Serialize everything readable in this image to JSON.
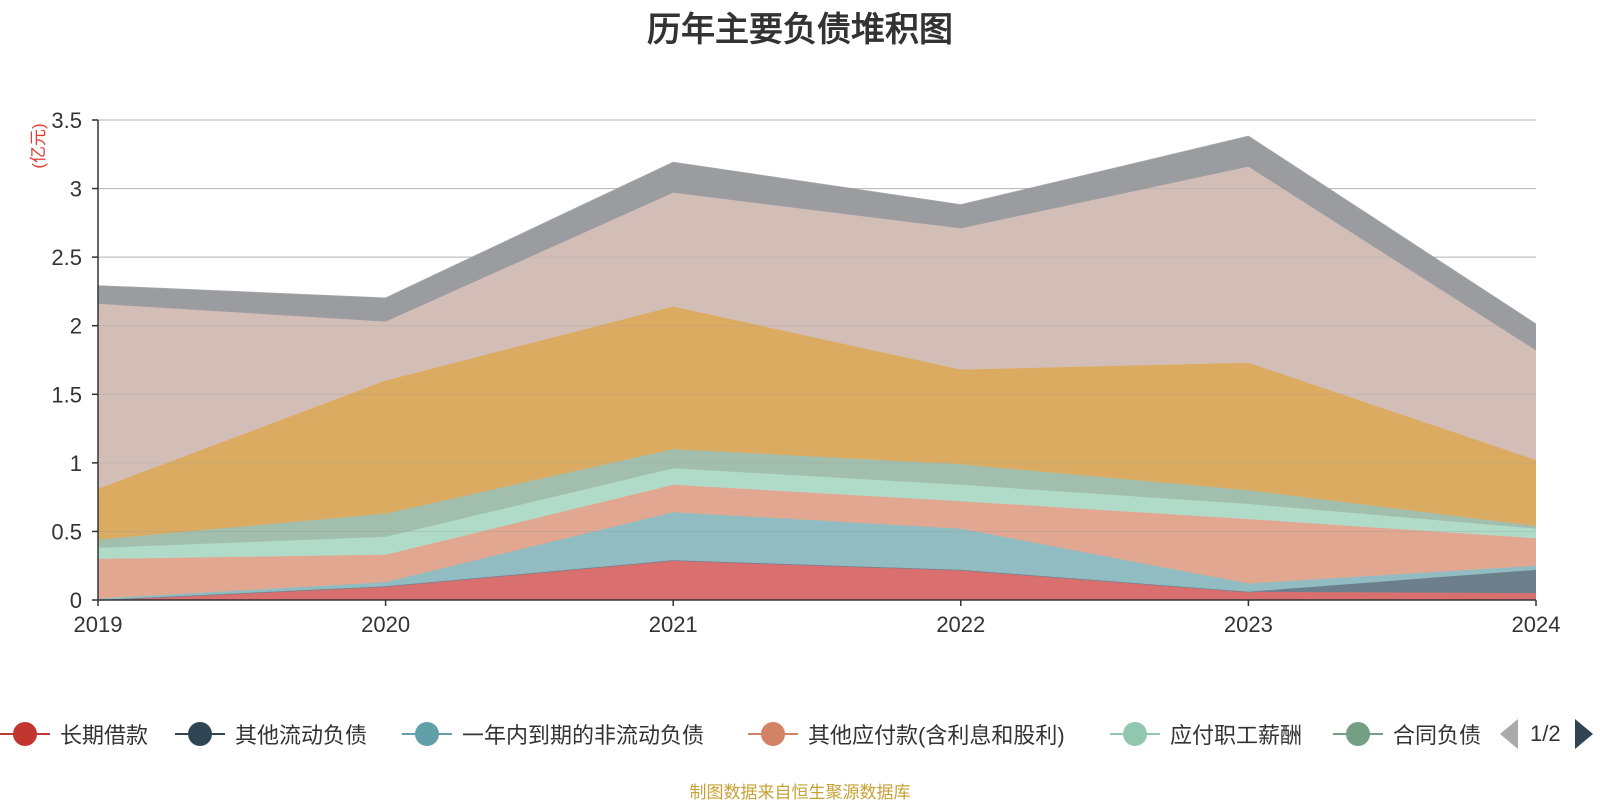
{
  "title": "历年主要负债堆积图",
  "unit_label": "(亿元)",
  "source": "制图数据来自恒生聚源数据库",
  "legend": {
    "items": [
      {
        "label": "长期借款",
        "color": "#c23531"
      },
      {
        "label": "其他流动负债",
        "color": "#2f4554"
      },
      {
        "label": "一年内到期的非流动负债",
        "color": "#61a0a8"
      },
      {
        "label": "其他应付款(含利息和股利)",
        "color": "#d48265"
      },
      {
        "label": "应付职工薪酬",
        "color": "#91c7ae"
      },
      {
        "label": "合同负债",
        "color": "#749f83"
      }
    ],
    "page": "1/2"
  },
  "chart_data": {
    "type": "area",
    "stacked": true,
    "x": [
      "2019",
      "2020",
      "2021",
      "2022",
      "2023",
      "2024"
    ],
    "ylim": [
      0,
      3.5
    ],
    "yticks": [
      "0",
      "0.5",
      "1",
      "1.5",
      "2",
      "2.5",
      "3",
      "3.5"
    ],
    "grid": true,
    "series": [
      {
        "name": "长期借款",
        "color": "#d9706f",
        "values": [
          0.0,
          0.1,
          0.29,
          0.22,
          0.06,
          0.05
        ]
      },
      {
        "name": "其他流动负债",
        "color": "#6e7f8c",
        "values": [
          0.0,
          0.0,
          0.0,
          0.0,
          0.0,
          0.17
        ]
      },
      {
        "name": "一年内到期的非流动负债",
        "color": "#90bcc2",
        "values": [
          0.01,
          0.03,
          0.35,
          0.3,
          0.06,
          0.03
        ]
      },
      {
        "name": "其他应付款(含利息和股利)",
        "color": "#e1a791",
        "values": [
          0.29,
          0.2,
          0.2,
          0.2,
          0.47,
          0.2
        ]
      },
      {
        "name": "应付职工薪酬",
        "color": "#b0dbc9",
        "values": [
          0.08,
          0.13,
          0.12,
          0.12,
          0.11,
          0.07
        ]
      },
      {
        "name": "合同负债",
        "color": "#a2bfad",
        "values": [
          0.06,
          0.17,
          0.14,
          0.15,
          0.1,
          0.02
        ]
      },
      {
        "name": "",
        "color": "#dbab62",
        "values": [
          0.37,
          0.97,
          1.04,
          0.69,
          0.93,
          0.48
        ]
      },
      {
        "name": "",
        "color": "#d2bdb7",
        "values": [
          1.35,
          0.43,
          0.83,
          1.03,
          1.43,
          0.8
        ]
      },
      {
        "name": "",
        "color": "#9a9ca0",
        "values": [
          0.13,
          0.17,
          0.22,
          0.17,
          0.22,
          0.19
        ]
      }
    ]
  }
}
